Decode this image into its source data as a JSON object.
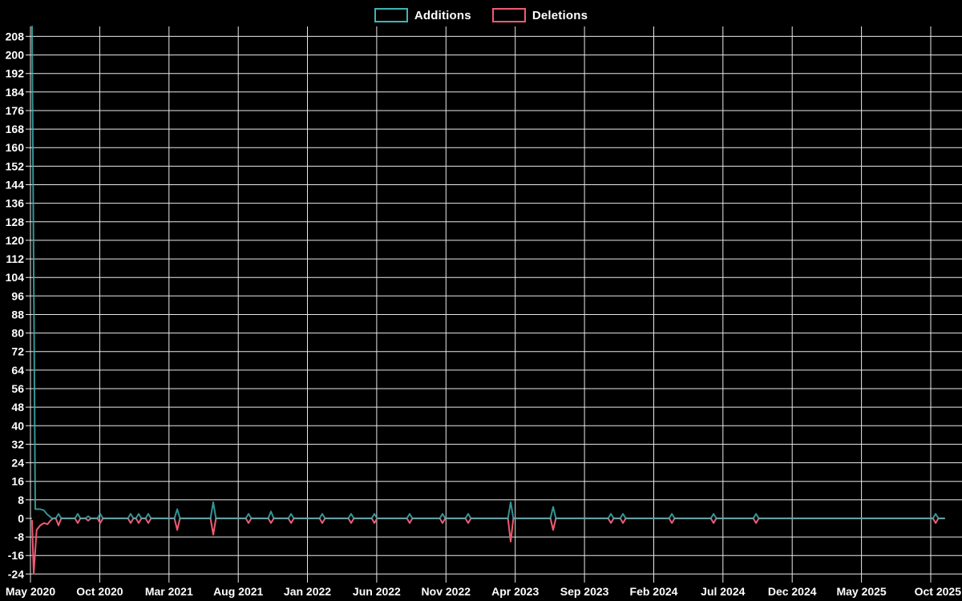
{
  "page": {
    "background": "#000000",
    "text_color": "#ffffff",
    "grid_color": "#e9e9e9"
  },
  "legend": {
    "items": [
      {
        "label": "Additions",
        "color": "#3fb5b5"
      },
      {
        "label": "Deletions",
        "color": "#ef5b73"
      }
    ]
  },
  "chart_data": {
    "type": "line",
    "title": "",
    "xlabel": "",
    "ylabel": "",
    "grid": true,
    "legend_position": "top-center",
    "x_axis": {
      "tick_labels": [
        "May 2020",
        "Oct 2020",
        "Mar 2021",
        "Aug 2021",
        "Jan 2022",
        "Jun 2022",
        "Nov 2022",
        "Apr 2023",
        "Sep 2023",
        "Feb 2024",
        "Jul 2024",
        "Dec 2024",
        "May 2025",
        "Oct 2025"
      ],
      "tick_interval_months": 5
    },
    "y_axis": {
      "tick_min": -24,
      "tick_max": 208,
      "tick_step": 8
    },
    "ylim": [
      -26.3,
      212.3
    ],
    "series": [
      {
        "name": "Additions",
        "color": "#3fb5b5",
        "points": [
          [
            0.0,
            213
          ],
          [
            0.0035,
            4
          ],
          [
            0.009,
            4
          ],
          [
            0.013,
            3.5
          ],
          [
            0.016,
            2
          ],
          [
            0.019,
            1
          ],
          [
            0.022,
            0
          ],
          [
            0.026,
            0
          ],
          [
            0.029,
            2
          ],
          [
            0.032,
            0
          ],
          [
            0.047,
            0
          ],
          [
            0.0501,
            2
          ],
          [
            0.053,
            0
          ],
          [
            0.0585,
            0
          ],
          [
            0.0615,
            1
          ],
          [
            0.0645,
            0
          ],
          [
            0.0717,
            0
          ],
          [
            0.0747,
            2
          ],
          [
            0.0777,
            0
          ],
          [
            0.1051,
            0
          ],
          [
            0.1081,
            2
          ],
          [
            0.1111,
            0
          ],
          [
            0.1139,
            0
          ],
          [
            0.1169,
            2
          ],
          [
            0.1199,
            0
          ],
          [
            0.1244,
            0
          ],
          [
            0.1274,
            2
          ],
          [
            0.1304,
            0
          ],
          [
            0.1561,
            0
          ],
          [
            0.1591,
            4
          ],
          [
            0.1621,
            0
          ],
          [
            0.1956,
            0
          ],
          [
            0.1986,
            7
          ],
          [
            0.2016,
            0
          ],
          [
            0.2343,
            0
          ],
          [
            0.2373,
            2
          ],
          [
            0.2403,
            0
          ],
          [
            0.2589,
            0
          ],
          [
            0.2619,
            3
          ],
          [
            0.2649,
            0
          ],
          [
            0.2809,
            0
          ],
          [
            0.2839,
            2
          ],
          [
            0.2869,
            0
          ],
          [
            0.3151,
            0
          ],
          [
            0.3181,
            2
          ],
          [
            0.3211,
            0
          ],
          [
            0.3467,
            0
          ],
          [
            0.3497,
            2
          ],
          [
            0.3527,
            0
          ],
          [
            0.3722,
            0
          ],
          [
            0.3752,
            2
          ],
          [
            0.3782,
            0
          ],
          [
            0.4109,
            0
          ],
          [
            0.4139,
            2
          ],
          [
            0.4169,
            0
          ],
          [
            0.4469,
            0
          ],
          [
            0.4499,
            2
          ],
          [
            0.4529,
            0
          ],
          [
            0.475,
            0
          ],
          [
            0.478,
            2
          ],
          [
            0.481,
            0
          ],
          [
            0.5216,
            0
          ],
          [
            0.5246,
            7
          ],
          [
            0.5276,
            0
          ],
          [
            0.5682,
            0
          ],
          [
            0.5712,
            5
          ],
          [
            0.5742,
            0
          ],
          [
            0.6315,
            0
          ],
          [
            0.6345,
            2
          ],
          [
            0.6375,
            0
          ],
          [
            0.6447,
            0
          ],
          [
            0.6477,
            2
          ],
          [
            0.6507,
            0
          ],
          [
            0.6983,
            0
          ],
          [
            0.7013,
            2
          ],
          [
            0.7043,
            0
          ],
          [
            0.744,
            0
          ],
          [
            0.747,
            2
          ],
          [
            0.75,
            0
          ],
          [
            0.7906,
            0
          ],
          [
            0.7936,
            2
          ],
          [
            0.7966,
            0
          ],
          [
            0.9874,
            0
          ],
          [
            0.9904,
            2
          ],
          [
            0.9934,
            0
          ],
          [
            1.0,
            0
          ]
        ]
      },
      {
        "name": "Deletions",
        "color": "#ef5b73",
        "points": [
          [
            0.0,
            -1
          ],
          [
            0.0018,
            -24
          ],
          [
            0.005,
            -5
          ],
          [
            0.009,
            -3
          ],
          [
            0.013,
            -2
          ],
          [
            0.017,
            -2.5
          ],
          [
            0.02,
            -1
          ],
          [
            0.023,
            0
          ],
          [
            0.026,
            0
          ],
          [
            0.029,
            -3
          ],
          [
            0.032,
            0
          ],
          [
            0.047,
            0
          ],
          [
            0.0501,
            -2
          ],
          [
            0.053,
            0
          ],
          [
            0.0585,
            0
          ],
          [
            0.0615,
            -1
          ],
          [
            0.0645,
            0
          ],
          [
            0.0717,
            0
          ],
          [
            0.0747,
            -2
          ],
          [
            0.0777,
            0
          ],
          [
            0.1051,
            0
          ],
          [
            0.1081,
            -2
          ],
          [
            0.1111,
            0
          ],
          [
            0.1139,
            0
          ],
          [
            0.1169,
            -2
          ],
          [
            0.1199,
            0
          ],
          [
            0.1244,
            0
          ],
          [
            0.1274,
            -2
          ],
          [
            0.1304,
            0
          ],
          [
            0.1561,
            0
          ],
          [
            0.1591,
            -5
          ],
          [
            0.1621,
            0
          ],
          [
            0.1956,
            0
          ],
          [
            0.1986,
            -7
          ],
          [
            0.2016,
            0
          ],
          [
            0.2343,
            0
          ],
          [
            0.2373,
            -2
          ],
          [
            0.2403,
            0
          ],
          [
            0.2589,
            0
          ],
          [
            0.2619,
            -2
          ],
          [
            0.2649,
            0
          ],
          [
            0.2809,
            0
          ],
          [
            0.2839,
            -2
          ],
          [
            0.2869,
            0
          ],
          [
            0.3151,
            0
          ],
          [
            0.3181,
            -2
          ],
          [
            0.3211,
            0
          ],
          [
            0.3467,
            0
          ],
          [
            0.3497,
            -2
          ],
          [
            0.3527,
            0
          ],
          [
            0.3722,
            0
          ],
          [
            0.3752,
            -2
          ],
          [
            0.3782,
            0
          ],
          [
            0.4109,
            0
          ],
          [
            0.4139,
            -2
          ],
          [
            0.4169,
            0
          ],
          [
            0.4469,
            0
          ],
          [
            0.4499,
            -2
          ],
          [
            0.4529,
            0
          ],
          [
            0.475,
            0
          ],
          [
            0.478,
            -2
          ],
          [
            0.481,
            0
          ],
          [
            0.5216,
            0
          ],
          [
            0.5246,
            -10
          ],
          [
            0.5276,
            0
          ],
          [
            0.5682,
            0
          ],
          [
            0.5712,
            -5
          ],
          [
            0.5742,
            0
          ],
          [
            0.6315,
            0
          ],
          [
            0.6345,
            -2
          ],
          [
            0.6375,
            0
          ],
          [
            0.6447,
            0
          ],
          [
            0.6477,
            -2
          ],
          [
            0.6507,
            0
          ],
          [
            0.6983,
            0
          ],
          [
            0.7013,
            -2
          ],
          [
            0.7043,
            0
          ],
          [
            0.744,
            0
          ],
          [
            0.747,
            -2
          ],
          [
            0.75,
            0
          ],
          [
            0.7906,
            0
          ],
          [
            0.7936,
            -2
          ],
          [
            0.7966,
            0
          ],
          [
            0.9874,
            0
          ],
          [
            0.9904,
            -2
          ],
          [
            0.9934,
            0
          ],
          [
            1.0,
            0
          ]
        ]
      }
    ],
    "notable_spikes": [
      {
        "date": "early May 2020",
        "additions": 213,
        "deletions": -24
      },
      {
        "date": "mid May 2020",
        "additions": 4,
        "deletions": -3
      },
      {
        "date": "Jul 2020",
        "additions": 2,
        "deletions": -3
      },
      {
        "date": "Aug 2020",
        "additions": 2,
        "deletions": -2
      },
      {
        "date": "Sep 2020",
        "additions": 1,
        "deletions": -1
      },
      {
        "date": "Oct 2020",
        "additions": 2,
        "deletions": -2
      },
      {
        "date": "Dec 2020",
        "additions": 2,
        "deletions": -2
      },
      {
        "date": "late Dec 2020",
        "additions": 2,
        "deletions": -2
      },
      {
        "date": "mid Jan 2021",
        "additions": 2,
        "deletions": -2
      },
      {
        "date": "late Mar 2021",
        "additions": 4,
        "deletions": -5
      },
      {
        "date": "mid Jun 2021",
        "additions": 7,
        "deletions": -7
      },
      {
        "date": "late Aug 2021",
        "additions": 2,
        "deletions": -2
      },
      {
        "date": "mid Oct 2021",
        "additions": 3,
        "deletions": -2
      },
      {
        "date": "late Nov 2021",
        "additions": 2,
        "deletions": -2
      },
      {
        "date": "mid Feb 2022",
        "additions": 2,
        "deletions": -2
      },
      {
        "date": "mid Apr 2022",
        "additions": 2,
        "deletions": -2
      },
      {
        "date": "late May 2022",
        "additions": 2,
        "deletions": -2
      },
      {
        "date": "mid Aug 2022",
        "additions": 2,
        "deletions": -2
      },
      {
        "date": "late Oct 2022",
        "additions": 2,
        "deletions": -2
      },
      {
        "date": "mid Dec 2022",
        "additions": 2,
        "deletions": -2
      },
      {
        "date": "late Mar 2023",
        "additions": 7,
        "deletions": -10
      },
      {
        "date": "late Jun 2023",
        "additions": 5,
        "deletions": -5
      },
      {
        "date": "late Oct 2023",
        "additions": 2,
        "deletions": -2
      },
      {
        "date": "mid Nov 2023",
        "additions": 2,
        "deletions": -2
      },
      {
        "date": "mid Mar 2024",
        "additions": 2,
        "deletions": -2
      },
      {
        "date": "mid Jun 2024",
        "additions": 2,
        "deletions": -2
      },
      {
        "date": "mid Sep 2024",
        "additions": 2,
        "deletions": -2
      },
      {
        "date": "mid Oct 2025",
        "additions": 2,
        "deletions": -2
      }
    ]
  }
}
